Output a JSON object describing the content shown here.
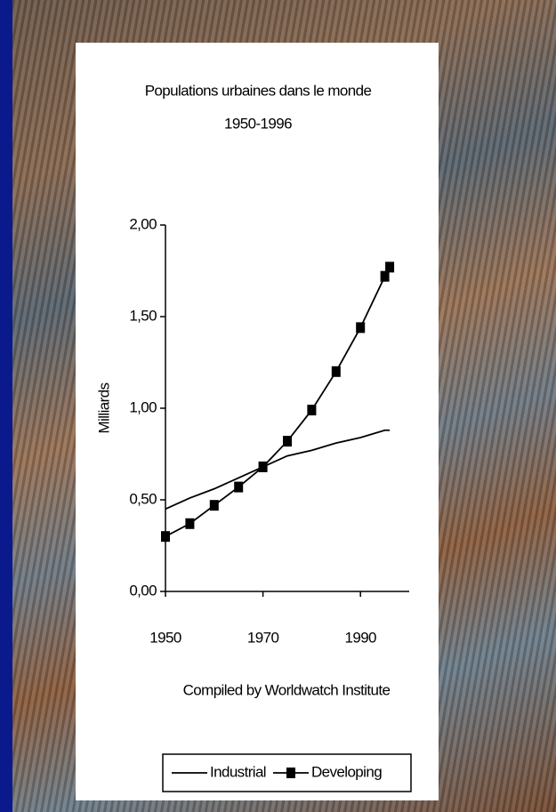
{
  "chart_data": {
    "type": "line",
    "title": "Populations urbaines dans le monde",
    "subtitle": "1950-1996",
    "y_label": "Milliards",
    "note": "Compiled by Worldwatch Institute",
    "xlim": [
      1950,
      2000
    ],
    "xticks": [
      1950,
      1970,
      1990
    ],
    "ylim": [
      0,
      2
    ],
    "yticks": [
      {
        "value": 0,
        "label": "0,00"
      },
      {
        "value": 0.5,
        "label": "0,50"
      },
      {
        "value": 1,
        "label": "1,00"
      },
      {
        "value": 1.5,
        "label": "1,50"
      },
      {
        "value": 2,
        "label": "2,00"
      }
    ],
    "series": [
      {
        "name": "Industrial",
        "color": "#000000",
        "marker": false,
        "x": [
          1950,
          1955,
          1960,
          1965,
          1970,
          1975,
          1980,
          1985,
          1990,
          1995,
          1996
        ],
        "values": [
          0.45,
          0.51,
          0.56,
          0.62,
          0.68,
          0.74,
          0.77,
          0.81,
          0.84,
          0.88,
          0.88
        ]
      },
      {
        "name": "Developing",
        "color": "#000000",
        "marker": true,
        "x": [
          1950,
          1955,
          1960,
          1965,
          1970,
          1975,
          1980,
          1985,
          1990,
          1995,
          1996
        ],
        "values": [
          0.3,
          0.37,
          0.47,
          0.57,
          0.68,
          0.82,
          0.99,
          1.2,
          1.44,
          1.72,
          1.77
        ]
      }
    ]
  }
}
